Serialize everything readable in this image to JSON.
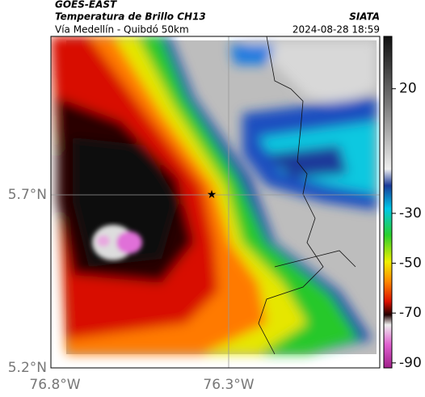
{
  "header": {
    "satellite": "GOES-EAST",
    "title": "Temperatura de Brillo CH13",
    "subtitle": "Vía Medellín - Quibdó 50km",
    "source": "SIATA",
    "datetime": "2024-08-28 18:59"
  },
  "map": {
    "lat_labels": [
      "5.7°N",
      "5.2°N"
    ],
    "lon_labels": [
      "76.8°W",
      "76.3°W"
    ]
  },
  "colorbar": {
    "lim": [
      -92,
      41
    ],
    "ticks": [
      20,
      -30,
      -50,
      -70,
      -90
    ]
  }
}
